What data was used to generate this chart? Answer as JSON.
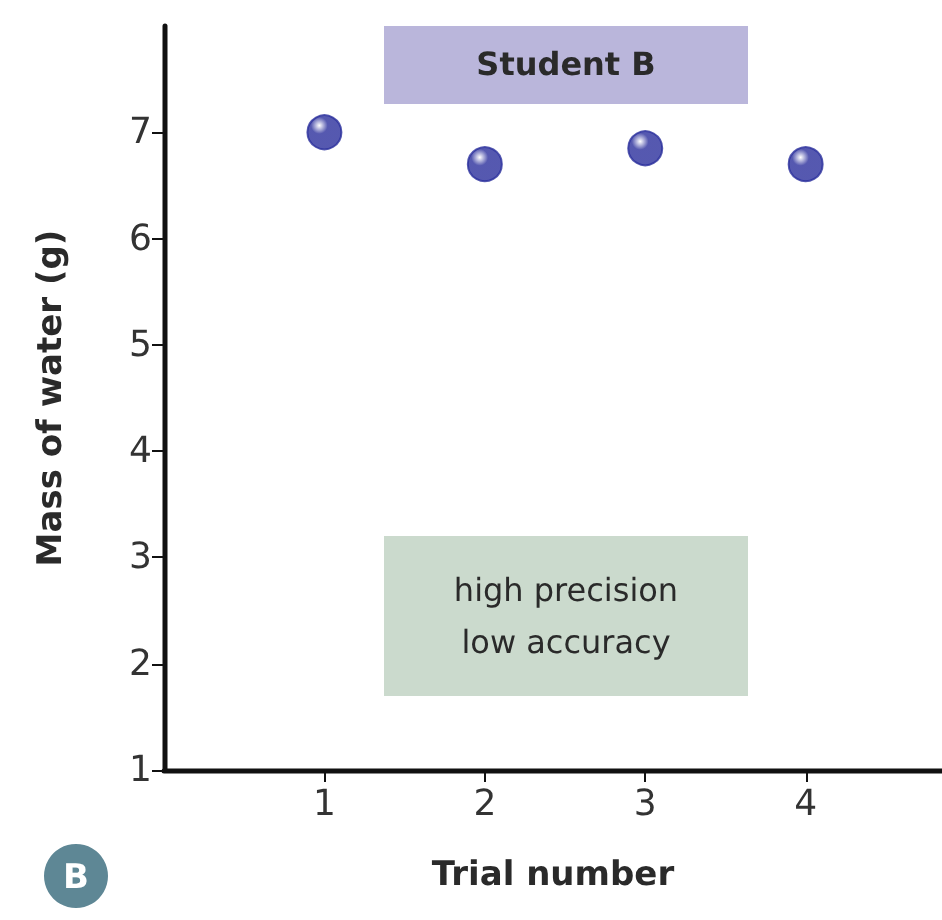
{
  "chart_data": {
    "type": "scatter",
    "title": "Student B",
    "xlabel": "Trial number",
    "ylabel": "Mass of water (g)",
    "x": [
      1,
      2,
      3,
      4
    ],
    "series": [
      {
        "color": "#2b2f9c",
        "values": [
          7.0,
          6.7,
          6.85,
          6.7
        ]
      }
    ],
    "xlim": [
      0,
      4.85
    ],
    "xticks": [
      1,
      2,
      3,
      4
    ],
    "ylim": [
      1,
      8
    ],
    "yticks": [
      1,
      2,
      3,
      4,
      5,
      6,
      7
    ],
    "grid": false,
    "marker": "circle",
    "annotations": [
      "high precision\nlow accuracy",
      "B"
    ]
  }
}
